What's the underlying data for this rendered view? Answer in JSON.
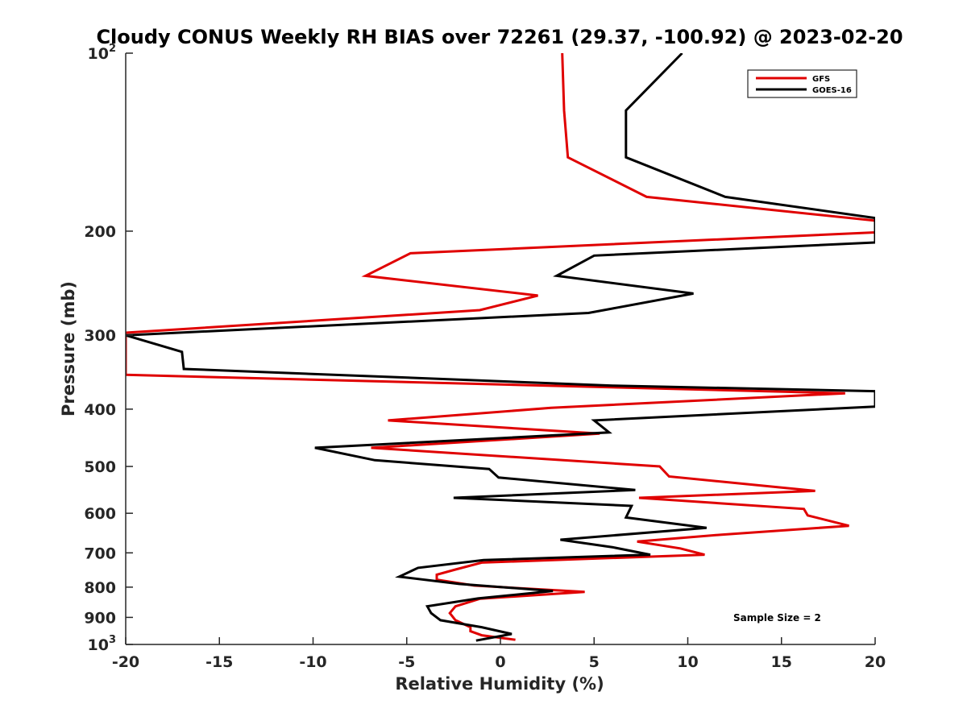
{
  "chart_data": {
    "type": "line",
    "title": "Cloudy CONUS Weekly RH BIAS over 72261 (29.37, -100.92) @ 2023-02-20",
    "xlabel": "Relative Humidity (%)",
    "ylabel": "Pressure (mb)",
    "xlim": [
      -20,
      20
    ],
    "ylim": [
      100,
      1000
    ],
    "y_scale": "log",
    "y_reversed": true,
    "x_ticks": [
      "-20",
      "-15",
      "-10",
      "-5",
      "0",
      "5",
      "10",
      "15",
      "20"
    ],
    "y_ticks": [
      {
        "value": 100,
        "base": "10",
        "exp": "2"
      },
      {
        "value": 200,
        "label": "200"
      },
      {
        "value": 300,
        "label": "300"
      },
      {
        "value": 400,
        "label": "400"
      },
      {
        "value": 500,
        "label": "500"
      },
      {
        "value": 600,
        "label": "600"
      },
      {
        "value": 700,
        "label": "700"
      },
      {
        "value": 800,
        "label": "800"
      },
      {
        "value": 900,
        "label": "900"
      },
      {
        "value": 1000,
        "base": "10",
        "exp": "3"
      }
    ],
    "legend_position": "top-right",
    "grid": false,
    "annotation": "Sample Size = 2",
    "series": [
      {
        "name": "GFS",
        "color": "#e00000",
        "points": [
          [
            3.3,
            100
          ],
          [
            3.4,
            125
          ],
          [
            3.6,
            150
          ],
          [
            7.8,
            175
          ],
          [
            20,
            192
          ],
          [
            20,
            201
          ],
          [
            -4.8,
            218
          ],
          [
            -7.2,
            238
          ],
          [
            2.0,
            257
          ],
          [
            -1.1,
            272
          ],
          [
            -20,
            297
          ],
          [
            -20,
            350
          ],
          [
            18.4,
            376
          ],
          [
            2.7,
            398
          ],
          [
            -6.0,
            418
          ],
          [
            5.3,
            440
          ],
          [
            -6.9,
            465
          ],
          [
            8.5,
            500
          ],
          [
            9.0,
            520
          ],
          [
            16.8,
            550
          ],
          [
            7.4,
            565
          ],
          [
            16.2,
            590
          ],
          [
            16.4,
            605
          ],
          [
            18.6,
            630
          ],
          [
            11.8,
            652
          ],
          [
            7.3,
            670
          ],
          [
            9.6,
            688
          ],
          [
            10.9,
            705
          ],
          [
            -1.0,
            727
          ],
          [
            -2.4,
            747
          ],
          [
            -3.4,
            762
          ],
          [
            -3.4,
            777
          ],
          [
            -1.4,
            795
          ],
          [
            4.5,
            815
          ],
          [
            -1.1,
            837
          ],
          [
            -2.4,
            862
          ],
          [
            -2.7,
            885
          ],
          [
            -2.4,
            910
          ],
          [
            -1.6,
            935
          ],
          [
            -1.6,
            950
          ],
          [
            -1.0,
            965
          ],
          [
            0.8,
            982
          ]
        ]
      },
      {
        "name": "GOES-16",
        "color": "#000000",
        "points": [
          [
            9.7,
            100
          ],
          [
            6.7,
            125
          ],
          [
            6.7,
            150
          ],
          [
            12.0,
            175
          ],
          [
            20,
            190
          ],
          [
            20,
            209
          ],
          [
            5.0,
            220
          ],
          [
            3.0,
            238
          ],
          [
            10.3,
            255
          ],
          [
            4.7,
            275
          ],
          [
            -20,
            300
          ],
          [
            -17.0,
            320
          ],
          [
            -16.9,
            342
          ],
          [
            6.0,
            365
          ],
          [
            20,
            373
          ],
          [
            20,
            396
          ],
          [
            5.0,
            418
          ],
          [
            5.8,
            438
          ],
          [
            -9.9,
            465
          ],
          [
            -6.7,
            488
          ],
          [
            -0.6,
            505
          ],
          [
            -0.1,
            522
          ],
          [
            7.2,
            548
          ],
          [
            -2.5,
            565
          ],
          [
            7.0,
            583
          ],
          [
            6.7,
            610
          ],
          [
            11.0,
            635
          ],
          [
            3.2,
            665
          ],
          [
            6.0,
            685
          ],
          [
            8.0,
            705
          ],
          [
            -0.9,
            720
          ],
          [
            -4.4,
            742
          ],
          [
            -5.4,
            768
          ],
          [
            -2.2,
            790
          ],
          [
            2.8,
            812
          ],
          [
            -1.2,
            836
          ],
          [
            -3.9,
            862
          ],
          [
            -3.7,
            885
          ],
          [
            -3.2,
            910
          ],
          [
            -1.0,
            935
          ],
          [
            0.6,
            960
          ],
          [
            -1.3,
            985
          ]
        ]
      }
    ]
  }
}
